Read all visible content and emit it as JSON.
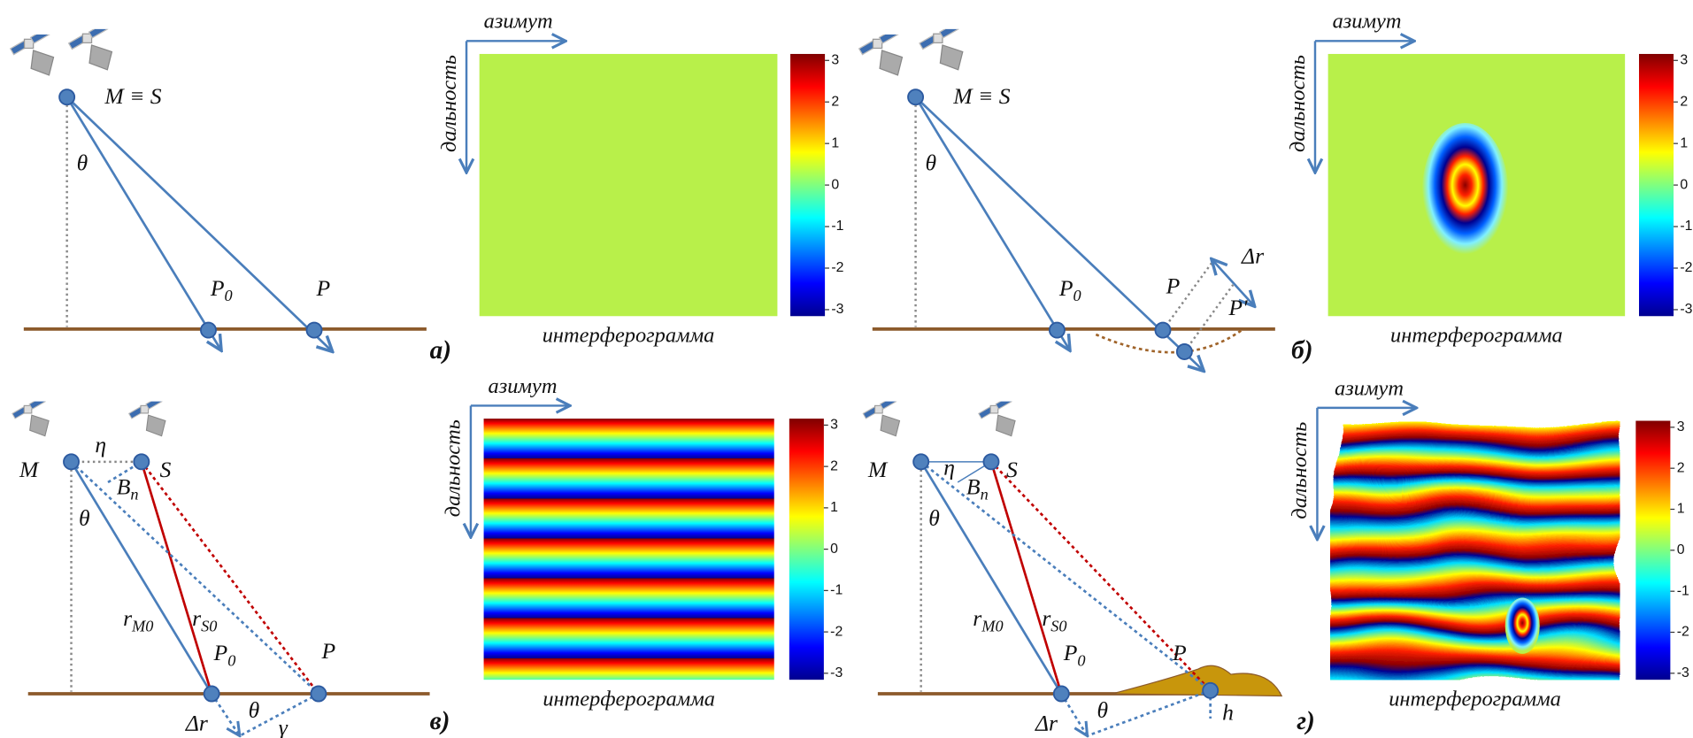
{
  "panels": [
    {
      "letter": "а)",
      "labels": {
        "ms": "M ≡ S",
        "theta": "θ",
        "p0": {
          "text": "P",
          "sub": "0"
        },
        "p": "P"
      },
      "interferogram": {
        "azimuth": "азимут",
        "range": "дальность",
        "caption": "интерферограмма",
        "colorbar_ticks": [
          3,
          2,
          1,
          0,
          -1,
          -2,
          -3
        ]
      }
    },
    {
      "letter": "б)",
      "labels": {
        "ms": "M ≡ S",
        "theta": "θ",
        "p0": {
          "text": "P",
          "sub": "0"
        },
        "p": "P",
        "dr": "Δr",
        "pprime": "P′"
      },
      "interferogram": {
        "azimuth": "азимут",
        "range": "дальность",
        "caption": "интерферограмма",
        "colorbar_ticks": [
          3,
          2,
          1,
          0,
          -1,
          -2,
          -3
        ]
      }
    },
    {
      "letter": "в)",
      "labels": {
        "m": "M",
        "s": "S",
        "eta": "η",
        "bn": {
          "text": "B",
          "sub": "n"
        },
        "theta": "θ",
        "rm0": {
          "text": "r",
          "sub": "M0"
        },
        "rs0": {
          "text": "r",
          "sub": "S0"
        },
        "p0": {
          "text": "P",
          "sub": "0"
        },
        "p": "P",
        "dr": "Δr",
        "theta2": "θ",
        "gamma": "γ"
      },
      "interferogram": {
        "azimuth": "азимут",
        "range": "дальность",
        "caption": "интерферограмма",
        "colorbar_ticks": [
          3,
          2,
          1,
          0,
          -1,
          -2,
          -3
        ]
      }
    },
    {
      "letter": "г)",
      "labels": {
        "m": "M",
        "s": "S",
        "eta": "η",
        "bn": {
          "text": "B",
          "sub": "n"
        },
        "theta": "θ",
        "rm0": {
          "text": "r",
          "sub": "M0"
        },
        "rs0": {
          "text": "r",
          "sub": "S0"
        },
        "p0": {
          "text": "P",
          "sub": "0"
        },
        "p": "P",
        "h": "h",
        "dr": "Δr",
        "theta2": "θ"
      },
      "interferogram": {
        "azimuth": "азимут",
        "range": "дальность",
        "caption": "интерферограмма",
        "colorbar_ticks": [
          3,
          2,
          1,
          0,
          -1,
          -2,
          -3
        ]
      }
    }
  ]
}
